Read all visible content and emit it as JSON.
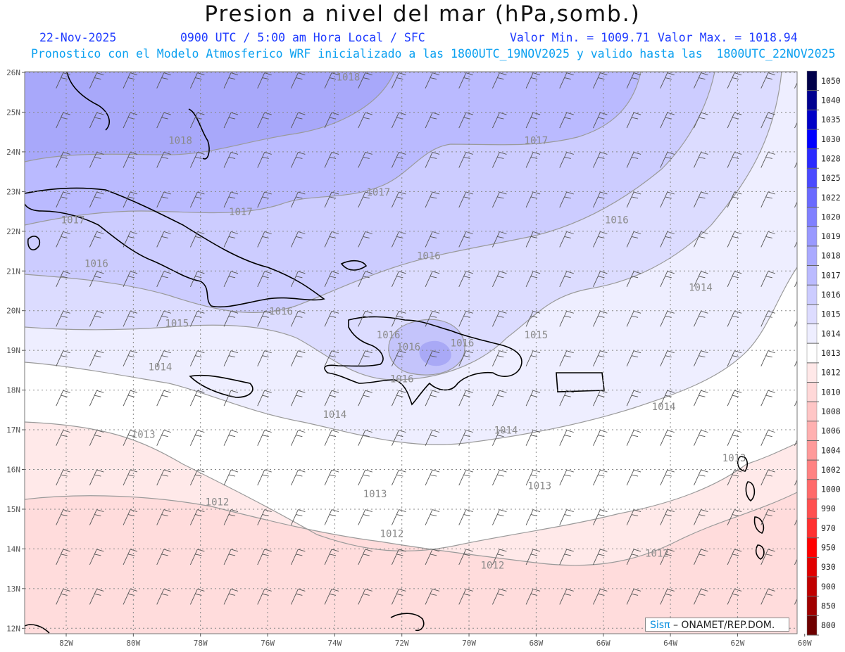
{
  "header": {
    "title": "Presion a nivel del mar (hPa,somb.)",
    "date": "22-Nov-2025",
    "time_info": "0900 UTC / 5:00 am Hora Local / SFC",
    "min_value": "Valor Min. = 1009.71",
    "max_value": "Valor Max. = 1018.94",
    "model_info": "Pronostico con el Modelo Atmosferico WRF inicializado a las 1800UTC_19NOV2025 y valido hasta las  1800UTC_22NOV2025"
  },
  "map_data": {
    "type": "sea-level-pressure-map",
    "unit": "hPa",
    "lat_ticks": [
      "26N",
      "25N",
      "24N",
      "23N",
      "22N",
      "21N",
      "20N",
      "19N",
      "18N",
      "17N",
      "16N",
      "15N",
      "14N",
      "13N",
      "12N"
    ],
    "lon_ticks": [
      "82W",
      "80W",
      "78W",
      "76W",
      "74W",
      "72W",
      "70W",
      "68W",
      "66W",
      "64W",
      "62W",
      "60W"
    ],
    "contour_labels": [
      {
        "text": "1018",
        "lon": -73.6,
        "lat": 25.8
      },
      {
        "text": "1018",
        "lon": -78.6,
        "lat": 24.2
      },
      {
        "text": "1017",
        "lon": -68.0,
        "lat": 24.2
      },
      {
        "text": "1017",
        "lon": -72.7,
        "lat": 22.9
      },
      {
        "text": "1017",
        "lon": -76.8,
        "lat": 22.4
      },
      {
        "text": "1017",
        "lon": -81.8,
        "lat": 22.2
      },
      {
        "text": "1016",
        "lon": -65.6,
        "lat": 22.2
      },
      {
        "text": "1016",
        "lon": -71.2,
        "lat": 21.3
      },
      {
        "text": "1016",
        "lon": -81.1,
        "lat": 21.1
      },
      {
        "text": "1016",
        "lon": -75.6,
        "lat": 19.9
      },
      {
        "text": "1015",
        "lon": -78.7,
        "lat": 19.6
      },
      {
        "text": "1016",
        "lon": -72.4,
        "lat": 19.3
      },
      {
        "text": "1016",
        "lon": -71.8,
        "lat": 19.0
      },
      {
        "text": "1016",
        "lon": -70.2,
        "lat": 19.1
      },
      {
        "text": "1015",
        "lon": -68.0,
        "lat": 19.3
      },
      {
        "text": "1016",
        "lon": -72.0,
        "lat": 18.2
      },
      {
        "text": "1014",
        "lon": -63.1,
        "lat": 20.5
      },
      {
        "text": "1014",
        "lon": -79.2,
        "lat": 18.5
      },
      {
        "text": "1014",
        "lon": -74.0,
        "lat": 17.3
      },
      {
        "text": "1014",
        "lon": -68.9,
        "lat": 16.9
      },
      {
        "text": "1014",
        "lon": -64.2,
        "lat": 17.5
      },
      {
        "text": "1013",
        "lon": -79.7,
        "lat": 16.8
      },
      {
        "text": "1013",
        "lon": -62.1,
        "lat": 16.2
      },
      {
        "text": "1013",
        "lon": -67.9,
        "lat": 15.5
      },
      {
        "text": "1013",
        "lon": -72.8,
        "lat": 15.3
      },
      {
        "text": "1012",
        "lon": -77.5,
        "lat": 15.1
      },
      {
        "text": "1012",
        "lon": -72.3,
        "lat": 14.3
      },
      {
        "text": "1012",
        "lon": -69.3,
        "lat": 13.5
      },
      {
        "text": "1012",
        "lon": -64.4,
        "lat": 13.8
      }
    ]
  },
  "colorbar": {
    "labels": [
      "1050",
      "1040",
      "1035",
      "1030",
      "1028",
      "1025",
      "1022",
      "1020",
      "1019",
      "1018",
      "1017",
      "1016",
      "1015",
      "1014",
      "1013",
      "1012",
      "1010",
      "1008",
      "1006",
      "1004",
      "1002",
      "1000",
      "990",
      "970",
      "950",
      "930",
      "900",
      "850",
      "800"
    ],
    "colors": [
      "#00004a",
      "#000090",
      "#0000c8",
      "#0000ff",
      "#2a2aff",
      "#4a4aff",
      "#6a6aff",
      "#8080ff",
      "#9999ff",
      "#aaaaff",
      "#bbbbff",
      "#ccccff",
      "#dddcff",
      "#eeeeff",
      "#ffffff",
      "#ffe8e8",
      "#ffd8d8",
      "#ffc6c6",
      "#ffb0b0",
      "#ff9a9a",
      "#ff8282",
      "#ff6a6a",
      "#ff5050",
      "#ff3030",
      "#ff0000",
      "#e00000",
      "#c00000",
      "#a00000",
      "#6e0000"
    ]
  },
  "credit": {
    "logo": "Sisπ",
    "text": " – ONAMET/REP.DOM."
  }
}
